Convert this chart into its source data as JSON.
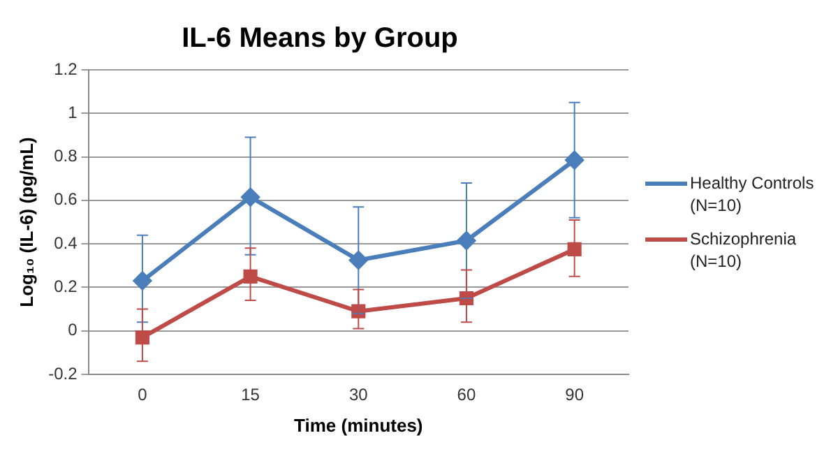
{
  "chart_data": {
    "type": "line",
    "title": "IL-6 Means by Group",
    "xlabel": "Time (minutes)",
    "ylabel": "Log₁₀ (IL-6) (pg/mL)",
    "categories": [
      "0",
      "15",
      "30",
      "60",
      "90"
    ],
    "series": [
      {
        "name": "Healthy Controls (N=10)",
        "color": "#4a7ebb",
        "marker": "diamond",
        "values": [
          0.23,
          0.615,
          0.325,
          0.415,
          0.785
        ],
        "errors": [
          [
            0.04,
            0.44
          ],
          [
            0.35,
            0.89
          ],
          [
            0.08,
            0.57
          ],
          [
            0.15,
            0.68
          ],
          [
            0.52,
            1.05
          ]
        ]
      },
      {
        "name": "Schizophrenia (N=10)",
        "color": "#be4b48",
        "marker": "square",
        "values": [
          -0.03,
          0.25,
          0.09,
          0.15,
          0.375
        ],
        "errors": [
          [
            -0.14,
            0.1
          ],
          [
            0.14,
            0.38
          ],
          [
            0.01,
            0.19
          ],
          [
            0.04,
            0.28
          ],
          [
            0.25,
            0.51
          ]
        ]
      }
    ],
    "ylim": [
      -0.2,
      1.2
    ],
    "yticks": [
      -0.2,
      0,
      0.2,
      0.4,
      0.6,
      0.8,
      1,
      1.2
    ],
    "grid": "y",
    "legend": "right",
    "line_style": "solid"
  }
}
